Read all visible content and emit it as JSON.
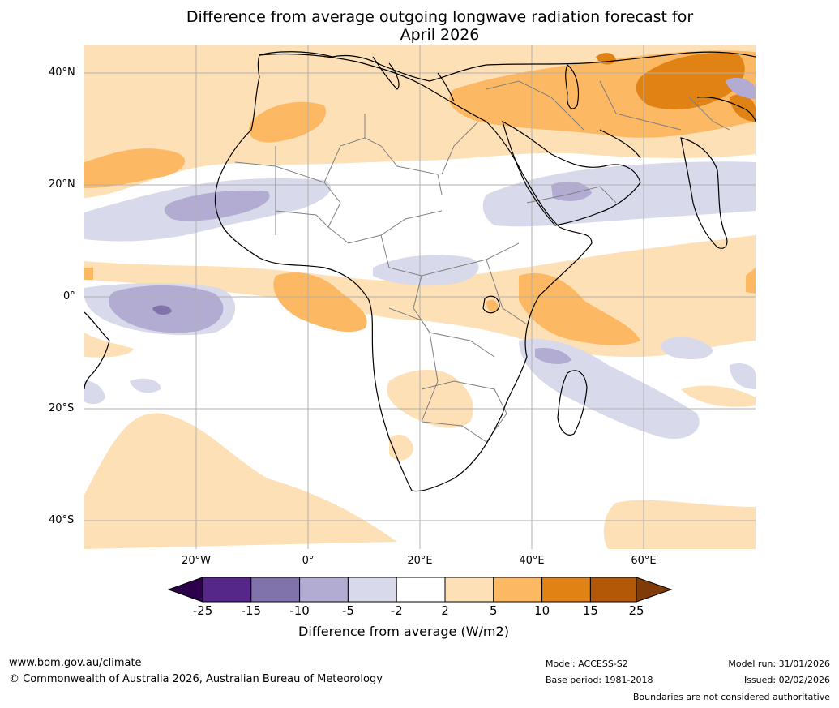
{
  "title": {
    "line1": "Difference from average outgoing longwave radiation forecast for",
    "line2": "April 2026"
  },
  "map": {
    "region": "Africa",
    "latitude_labels": [
      "40°N",
      "20°N",
      "0°",
      "20°S",
      "40°S"
    ],
    "longitude_labels": [
      "20°W",
      "0°",
      "20°E",
      "40°E",
      "60°E"
    ]
  },
  "colorbar": {
    "ticks": [
      "-25",
      "-15",
      "-10",
      "-5",
      "-2",
      "2",
      "5",
      "10",
      "15",
      "25"
    ],
    "label": "Difference from average (W/m2)",
    "colors": {
      "extend_low": "#2d004b",
      "c_minus25_minus15": "#542788",
      "c_minus15_minus10": "#8073ac",
      "c_minus10_minus5": "#b2abd2",
      "c_minus5_minus2": "#d8daeb",
      "c_minus2_2": "#ffffff",
      "c_2_5": "#fee0b6",
      "c_5_10": "#fdb863",
      "c_10_15": "#e08214",
      "c_15_25": "#b35806",
      "extend_high": "#7f3b08"
    }
  },
  "footer": {
    "website": "www.bom.gov.au/climate",
    "copyright": "© Commonwealth of Australia 2026, Australian Bureau of Meteorology",
    "model": "Model: ACCESS-S2",
    "base_period": "Base period: 1981-2018",
    "model_run": "Model run: 31/01/2026",
    "issued": "Issued: 02/02/2026",
    "disclaimer": "Boundaries are not considered authoritative"
  }
}
